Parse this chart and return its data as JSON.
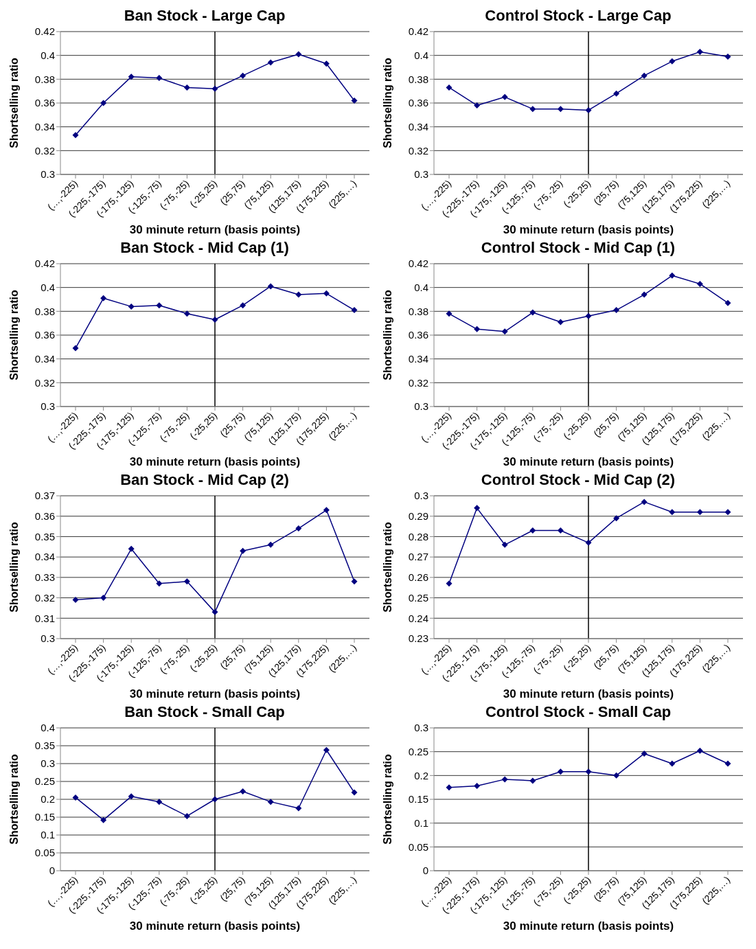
{
  "chart_data": [
    {
      "type": "line",
      "title": "Ban Stock - Large Cap",
      "xlabel": "30 minute return (basis points)",
      "ylabel": "Shortselling ratio",
      "categories": [
        "(…,-225)",
        "(-225,-175)",
        "(-175,-125)",
        "(-125,-75)",
        "(-75,-25)",
        "(-25,25)",
        "(25,75)",
        "(75,125)",
        "(125,175)",
        "(175,225)",
        "(225,…)"
      ],
      "series": [
        {
          "color": "#000080",
          "values": [
            0.333,
            0.36,
            0.382,
            0.381,
            0.373,
            0.372,
            0.383,
            0.394,
            0.401,
            0.393,
            0.362
          ]
        }
      ],
      "ylim": [
        0.3,
        0.42
      ],
      "yticks": [
        0.3,
        0.32,
        0.34,
        0.36,
        0.38,
        0.4,
        0.42
      ],
      "grid": "y",
      "legend": false,
      "marker": "diamond",
      "line_style": "solid",
      "ref_lines": [
        {
          "axis": "x",
          "value": "(-25,25)",
          "color": "#000000"
        }
      ]
    },
    {
      "type": "line",
      "title": "Control Stock - Large Cap",
      "xlabel": "30 minute return (basis points)",
      "ylabel": "Shortselling ratio",
      "categories": [
        "(…,-225)",
        "(-225,-175)",
        "(-175,-125)",
        "(-125,-75)",
        "(-75,-25)",
        "(-25,25)",
        "(25,75)",
        "(75,125)",
        "(125,175)",
        "(175,225)",
        "(225,…)"
      ],
      "series": [
        {
          "color": "#000080",
          "values": [
            0.373,
            0.358,
            0.365,
            0.355,
            0.355,
            0.354,
            0.368,
            0.383,
            0.395,
            0.403,
            0.399
          ]
        }
      ],
      "ylim": [
        0.3,
        0.42
      ],
      "yticks": [
        0.3,
        0.32,
        0.34,
        0.36,
        0.38,
        0.4,
        0.42
      ],
      "grid": "y",
      "legend": false,
      "marker": "diamond",
      "line_style": "solid",
      "ref_lines": [
        {
          "axis": "x",
          "value": "(-25,25)",
          "color": "#000000"
        }
      ]
    },
    {
      "type": "line",
      "title": "Ban Stock - Mid Cap (1)",
      "xlabel": "30 minute return (basis points)",
      "ylabel": "Shortselling ratio",
      "categories": [
        "(…,-225)",
        "(-225,-175)",
        "(-175,-125)",
        "(-125,-75)",
        "(-75,-25)",
        "(-25,25)",
        "(25,75)",
        "(75,125)",
        "(125,175)",
        "(175,225)",
        "(225,…)"
      ],
      "series": [
        {
          "color": "#000080",
          "values": [
            0.349,
            0.391,
            0.384,
            0.385,
            0.378,
            0.373,
            0.385,
            0.401,
            0.394,
            0.395,
            0.381
          ]
        }
      ],
      "ylim": [
        0.3,
        0.42
      ],
      "yticks": [
        0.3,
        0.32,
        0.34,
        0.36,
        0.38,
        0.4,
        0.42
      ],
      "grid": "y",
      "legend": false,
      "marker": "diamond",
      "line_style": "solid",
      "ref_lines": [
        {
          "axis": "x",
          "value": "(-25,25)",
          "color": "#000000"
        }
      ]
    },
    {
      "type": "line",
      "title": "Control Stock - Mid Cap (1)",
      "xlabel": "30 minute return (basis points)",
      "ylabel": "Shortselling ratio",
      "categories": [
        "(…,-225)",
        "(-225,-175)",
        "(-175,-125)",
        "(-125,-75)",
        "(-75,-25)",
        "(-25,25)",
        "(25,75)",
        "(75,125)",
        "(125,175)",
        "(175,225)",
        "(225,…)"
      ],
      "series": [
        {
          "color": "#000080",
          "values": [
            0.378,
            0.365,
            0.363,
            0.379,
            0.371,
            0.376,
            0.381,
            0.394,
            0.41,
            0.403,
            0.387
          ]
        }
      ],
      "ylim": [
        0.3,
        0.42
      ],
      "yticks": [
        0.3,
        0.32,
        0.34,
        0.36,
        0.38,
        0.4,
        0.42
      ],
      "grid": "y",
      "legend": false,
      "marker": "diamond",
      "line_style": "solid",
      "ref_lines": [
        {
          "axis": "x",
          "value": "(-25,25)",
          "color": "#000000"
        }
      ]
    },
    {
      "type": "line",
      "title": "Ban Stock - Mid Cap (2)",
      "xlabel": "30 minute return (basis points)",
      "ylabel": "Shortselling ratio",
      "categories": [
        "(…,-225)",
        "(-225,-175)",
        "(-175,-125)",
        "(-125,-75)",
        "(-75,-25)",
        "(-25,25)",
        "(25,75)",
        "(75,125)",
        "(125,175)",
        "(175,225)",
        "(225,…)"
      ],
      "series": [
        {
          "color": "#000080",
          "values": [
            0.319,
            0.32,
            0.344,
            0.327,
            0.328,
            0.313,
            0.343,
            0.346,
            0.354,
            0.363,
            0.328
          ]
        }
      ],
      "ylim": [
        0.3,
        0.37
      ],
      "yticks": [
        0.3,
        0.31,
        0.32,
        0.33,
        0.34,
        0.35,
        0.36,
        0.37
      ],
      "grid": "y",
      "legend": false,
      "marker": "diamond",
      "line_style": "solid",
      "ref_lines": [
        {
          "axis": "x",
          "value": "(-25,25)",
          "color": "#000000"
        }
      ]
    },
    {
      "type": "line",
      "title": "Control Stock - Mid Cap (2)",
      "xlabel": "30 minute return (basis points)",
      "ylabel": "Shortselling ratio",
      "categories": [
        "(…,-225)",
        "(-225,-175)",
        "(-175,-125)",
        "(-125,-75)",
        "(-75,-25)",
        "(-25,25)",
        "(25,75)",
        "(75,125)",
        "(125,175)",
        "(175,225)",
        "(225,…)"
      ],
      "series": [
        {
          "color": "#000080",
          "values": [
            0.257,
            0.294,
            0.276,
            0.283,
            0.283,
            0.277,
            0.289,
            0.297,
            0.292,
            0.292,
            0.292
          ]
        }
      ],
      "ylim": [
        0.23,
        0.3
      ],
      "yticks": [
        0.23,
        0.24,
        0.25,
        0.26,
        0.27,
        0.28,
        0.29,
        0.3
      ],
      "grid": "y",
      "legend": false,
      "marker": "diamond",
      "line_style": "solid",
      "ref_lines": [
        {
          "axis": "x",
          "value": "(-25,25)",
          "color": "#000000"
        }
      ]
    },
    {
      "type": "line",
      "title": "Ban Stock - Small Cap",
      "xlabel": "30 minute return (basis points)",
      "ylabel": "Shortselling ratio",
      "categories": [
        "(…,-225)",
        "(-225,-175)",
        "(-175,-125)",
        "(-125,-75)",
        "(-75,-25)",
        "(-25,25)",
        "(25,75)",
        "(75,125)",
        "(125,175)",
        "(175,225)",
        "(225,…)"
      ],
      "series": [
        {
          "color": "#000080",
          "values": [
            0.205,
            0.142,
            0.208,
            0.193,
            0.153,
            0.2,
            0.222,
            0.193,
            0.175,
            0.338,
            0.219
          ]
        }
      ],
      "ylim": [
        0,
        0.4
      ],
      "yticks": [
        0,
        0.05,
        0.1,
        0.15,
        0.2,
        0.25,
        0.3,
        0.35,
        0.4
      ],
      "grid": "y",
      "legend": false,
      "marker": "diamond",
      "line_style": "solid",
      "ref_lines": [
        {
          "axis": "x",
          "value": "(-25,25)",
          "color": "#000000"
        }
      ]
    },
    {
      "type": "line",
      "title": "Control Stock - Small Cap",
      "xlabel": "30 minute return (basis points)",
      "ylabel": "Shortselling ratio",
      "categories": [
        "(…,-225)",
        "(-225,-175)",
        "(-175,-125)",
        "(-125,-75)",
        "(-75,-25)",
        "(-25,25)",
        "(25,75)",
        "(75,125)",
        "(125,175)",
        "(175,225)",
        "(225,…)"
      ],
      "series": [
        {
          "color": "#000080",
          "values": [
            0.175,
            0.178,
            0.192,
            0.189,
            0.208,
            0.208,
            0.2,
            0.246,
            0.225,
            0.252,
            0.225
          ]
        }
      ],
      "ylim": [
        0,
        0.3
      ],
      "yticks": [
        0,
        0.05,
        0.1,
        0.15,
        0.2,
        0.25,
        0.3
      ],
      "grid": "y",
      "legend": false,
      "marker": "diamond",
      "line_style": "solid",
      "ref_lines": [
        {
          "axis": "x",
          "value": "(-25,25)",
          "color": "#000000"
        }
      ]
    }
  ]
}
